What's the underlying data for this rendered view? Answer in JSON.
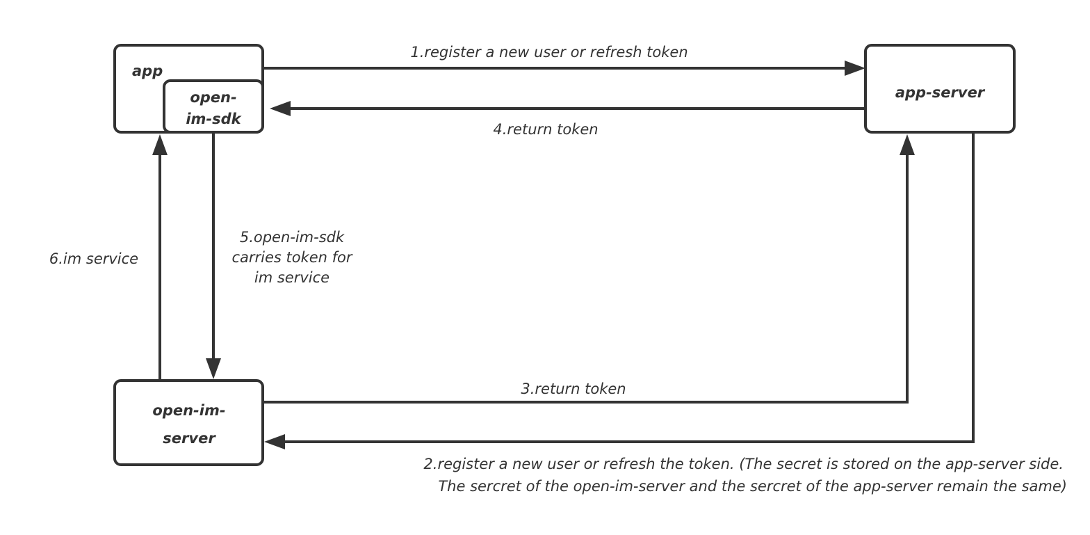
{
  "nodes": {
    "app": "app",
    "sdk_line1": "open-",
    "sdk_line2": "im-sdk",
    "app_server": "app-server",
    "im_server_line1": "open-im-",
    "im_server_line2": "server"
  },
  "edges": {
    "step1": "1.register a new user or refresh token",
    "step2_line1": "2.register a new user or refresh the token. (The secret is stored on the app-server side.",
    "step2_line2": "The sercret of the open-im-server and the sercret of the app-server remain the same)",
    "step3": "3.return token",
    "step4": "4.return token",
    "step5_line1": "5.open-im-sdk",
    "step5_line2": "carries token for",
    "step5_line3": "im service",
    "step6": "6.im service"
  },
  "colors": {
    "stroke": "#333333",
    "background": "#ffffff"
  }
}
